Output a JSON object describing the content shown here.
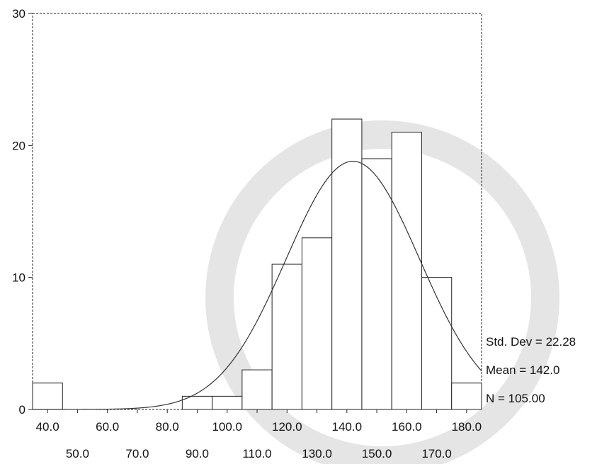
{
  "chart_data": {
    "type": "histogram",
    "title": "",
    "xlabel": "",
    "ylabel": "",
    "bin_width": 10,
    "bins": [
      {
        "center": 40.0,
        "count": 2
      },
      {
        "center": 50.0,
        "count": 0
      },
      {
        "center": 60.0,
        "count": 0
      },
      {
        "center": 70.0,
        "count": 0
      },
      {
        "center": 80.0,
        "count": 0
      },
      {
        "center": 90.0,
        "count": 1
      },
      {
        "center": 100.0,
        "count": 1
      },
      {
        "center": 110.0,
        "count": 3
      },
      {
        "center": 120.0,
        "count": 11
      },
      {
        "center": 130.0,
        "count": 13
      },
      {
        "center": 140.0,
        "count": 22
      },
      {
        "center": 150.0,
        "count": 19
      },
      {
        "center": 160.0,
        "count": 21
      },
      {
        "center": 170.0,
        "count": 10
      },
      {
        "center": 180.0,
        "count": 2
      }
    ],
    "xlim": [
      35,
      185
    ],
    "ylim": [
      0,
      30
    ],
    "y_ticks": [
      "0",
      "10",
      "20",
      "30"
    ],
    "x_ticks_upper": [
      "40.0",
      "60.0",
      "80.0",
      "100.0",
      "120.0",
      "140.0",
      "160.0",
      "180.0"
    ],
    "x_ticks_lower": [
      "50.0",
      "70.0",
      "90.0",
      "110.0",
      "130.0",
      "150.0",
      "170.0"
    ],
    "normal_curve": {
      "mean": 142.0,
      "std_dev": 22.28,
      "n": 105.0
    },
    "stats": {
      "std_dev": "Std. Dev = 22.28",
      "mean": "Mean = 142.0",
      "n": "N = 105.00"
    }
  }
}
